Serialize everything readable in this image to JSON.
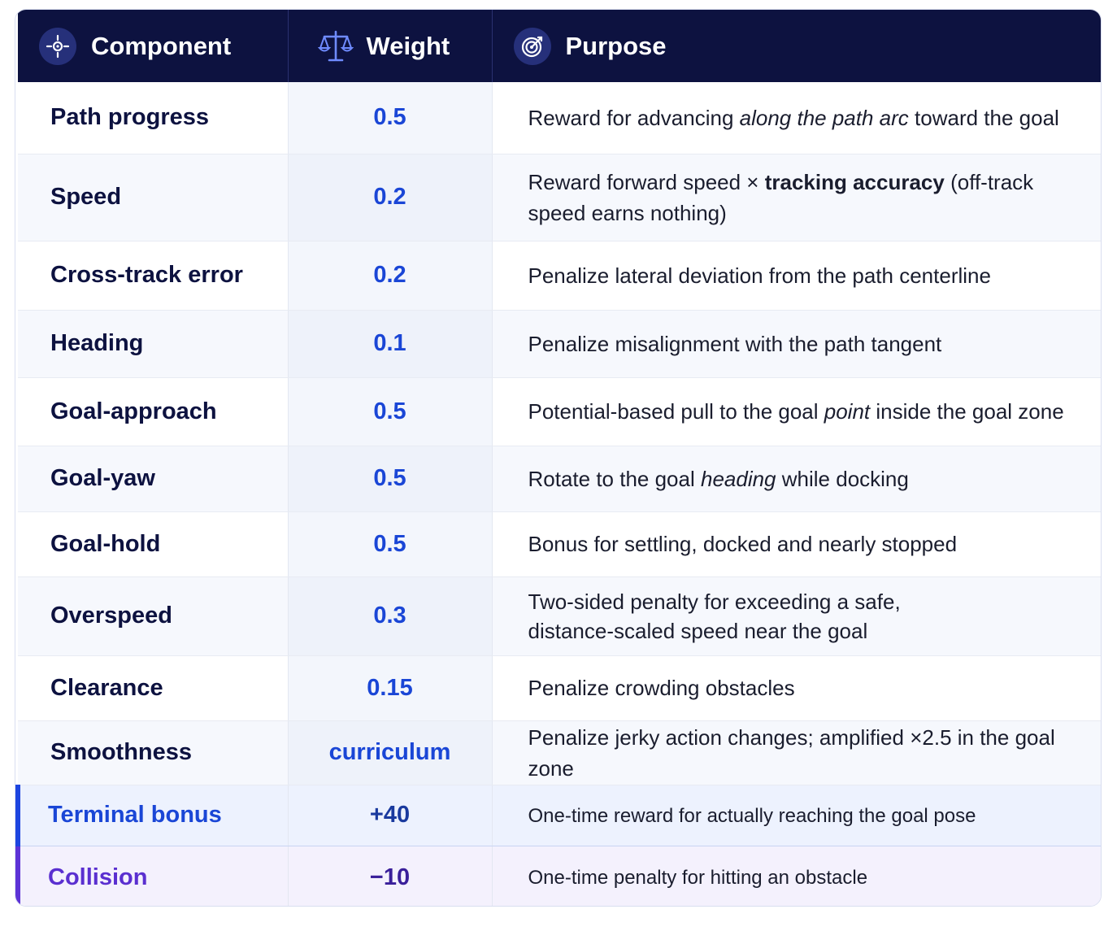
{
  "header": {
    "component": "Component",
    "weight": "Weight",
    "purpose": "Purpose"
  },
  "icons": {
    "component": "crosshair-icon",
    "weight": "scales-icon",
    "purpose": "target-icon"
  },
  "colors": {
    "header_bg": "#0d1240",
    "weight_text": "#1a46d6",
    "terminal_accent": "#1d45e0",
    "collision_accent": "#5d33d6"
  },
  "rows": [
    {
      "component": "Path progress",
      "weight": "0.5",
      "purpose": [
        "Reward for advancing ",
        "along the path arc",
        " toward the goal"
      ]
    },
    {
      "component": "Speed",
      "weight": "0.2",
      "purpose": [
        "Reward forward speed × ",
        "tracking accuracy",
        " (off-track",
        "speed earns nothing)"
      ]
    },
    {
      "component": "Cross-track error",
      "weight": "0.2",
      "purpose": [
        "Penalize lateral deviation from the path centerline"
      ]
    },
    {
      "component": "Heading",
      "weight": "0.1",
      "purpose": [
        "Penalize misalignment with the path tangent"
      ]
    },
    {
      "component": "Goal-approach",
      "weight": "0.5",
      "purpose": [
        "Potential-based pull to the goal ",
        "point",
        " inside the goal zone"
      ]
    },
    {
      "component": "Goal-yaw",
      "weight": "0.5",
      "purpose": [
        "Rotate to the goal ",
        "heading",
        " while docking"
      ]
    },
    {
      "component": "Goal-hold",
      "weight": "0.5",
      "purpose": [
        "Bonus for settling, docked and nearly stopped"
      ]
    },
    {
      "component": "Overspeed",
      "weight": "0.3",
      "purpose": [
        "Two-sided penalty for exceeding a safe,",
        "distance-scaled speed near the goal"
      ]
    },
    {
      "component": "Clearance",
      "weight": "0.15",
      "purpose": [
        "Penalize crowding obstacles"
      ]
    },
    {
      "component": "Smoothness",
      "weight": "curriculum",
      "purpose": [
        "Penalize jerky action changes; amplified ×2.5 in the goal zone"
      ]
    },
    {
      "component": "Terminal bonus",
      "weight": "+40",
      "purpose": [
        "One-time reward for actually reaching the goal pose"
      ]
    },
    {
      "component": "Collision",
      "weight": "−10",
      "purpose": [
        "One-time penalty for hitting an obstacle"
      ]
    }
  ]
}
